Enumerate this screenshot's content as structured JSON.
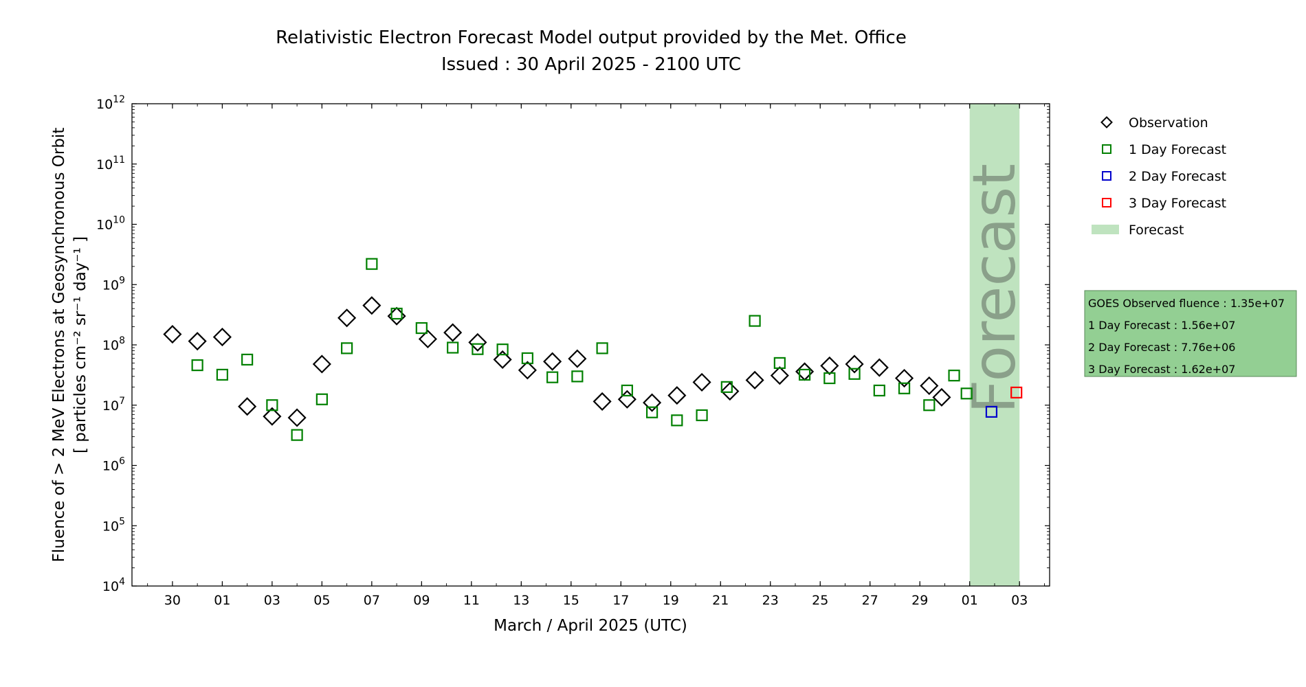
{
  "chart_data": {
    "type": "scatter",
    "title": "Relativistic Electron Forecast Model output provided by the Met. Office",
    "subtitle": "Issued : 30 April 2025 - 2100 UTC",
    "xlabel": "March / April 2025 (UTC)",
    "ylabel_line1": "Fluence of > 2 MeV Electrons at Geosynchronous Orbit",
    "ylabel_line2": "[ particles cm⁻² sr⁻¹ day⁻¹ ]",
    "y_scale": "log",
    "ylim": [
      10000,
      1000000000000
    ],
    "y_ticks": [
      {
        "value": 10000,
        "base": "10",
        "exp": "4"
      },
      {
        "value": 100000,
        "base": "10",
        "exp": "5"
      },
      {
        "value": 1000000,
        "base": "10",
        "exp": "6"
      },
      {
        "value": 10000000,
        "base": "10",
        "exp": "7"
      },
      {
        "value": 100000000,
        "base": "10",
        "exp": "8"
      },
      {
        "value": 1000000000,
        "base": "10",
        "exp": "9"
      },
      {
        "value": 10000000000,
        "base": "10",
        "exp": "10"
      },
      {
        "value": 100000000000,
        "base": "10",
        "exp": "11"
      },
      {
        "value": 1000000000000,
        "base": "10",
        "exp": "12"
      }
    ],
    "xlim": [
      "2025-03-28T09:00",
      "2025-05-04T05:00"
    ],
    "x_ticks": [
      {
        "value": "2025-03-30",
        "label": "30"
      },
      {
        "value": "2025-04-01",
        "label": "01"
      },
      {
        "value": "2025-04-03",
        "label": "03"
      },
      {
        "value": "2025-04-05",
        "label": "05"
      },
      {
        "value": "2025-04-07",
        "label": "07"
      },
      {
        "value": "2025-04-09",
        "label": "09"
      },
      {
        "value": "2025-04-11",
        "label": "11"
      },
      {
        "value": "2025-04-13",
        "label": "13"
      },
      {
        "value": "2025-04-15",
        "label": "15"
      },
      {
        "value": "2025-04-17",
        "label": "17"
      },
      {
        "value": "2025-04-19",
        "label": "19"
      },
      {
        "value": "2025-04-21",
        "label": "21"
      },
      {
        "value": "2025-04-23",
        "label": "23"
      },
      {
        "value": "2025-04-25",
        "label": "25"
      },
      {
        "value": "2025-04-27",
        "label": "27"
      },
      {
        "value": "2025-04-29",
        "label": "29"
      },
      {
        "value": "2025-05-01",
        "label": "01"
      },
      {
        "value": "2025-05-03",
        "label": "03"
      }
    ],
    "forecast_band": {
      "start": "2025-05-01T00:00",
      "end": "2025-05-03T00:00",
      "color": "#bfe3bf",
      "label": "Forecast",
      "label_color": "#8aa08a"
    },
    "series": [
      {
        "name": "Observation",
        "marker": "diamond",
        "color": "#000000",
        "points": [
          {
            "x": "2025-03-30T00:00",
            "y": 150000000
          },
          {
            "x": "2025-03-31T00:00",
            "y": 115000000
          },
          {
            "x": "2025-04-01T00:00",
            "y": 135000000
          },
          {
            "x": "2025-04-02T00:00",
            "y": 9500000
          },
          {
            "x": "2025-04-03T00:00",
            "y": 6500000
          },
          {
            "x": "2025-04-04T00:00",
            "y": 6200000
          },
          {
            "x": "2025-04-05T00:00",
            "y": 48000000
          },
          {
            "x": "2025-04-06T00:00",
            "y": 280000000
          },
          {
            "x": "2025-04-07T00:00",
            "y": 450000000
          },
          {
            "x": "2025-04-08T00:00",
            "y": 300000000
          },
          {
            "x": "2025-04-09T06:00",
            "y": 125000000
          },
          {
            "x": "2025-04-10T06:00",
            "y": 160000000
          },
          {
            "x": "2025-04-11T06:00",
            "y": 110000000
          },
          {
            "x": "2025-04-12T06:00",
            "y": 57000000
          },
          {
            "x": "2025-04-13T06:00",
            "y": 38000000
          },
          {
            "x": "2025-04-14T06:00",
            "y": 53000000
          },
          {
            "x": "2025-04-15T06:00",
            "y": 59000000
          },
          {
            "x": "2025-04-16T06:00",
            "y": 11500000
          },
          {
            "x": "2025-04-17T06:00",
            "y": 12500000
          },
          {
            "x": "2025-04-18T06:00",
            "y": 11000000
          },
          {
            "x": "2025-04-19T06:00",
            "y": 14500000
          },
          {
            "x": "2025-04-20T06:00",
            "y": 24000000
          },
          {
            "x": "2025-04-21T09:00",
            "y": 17000000
          },
          {
            "x": "2025-04-22T09:00",
            "y": 26000000
          },
          {
            "x": "2025-04-23T09:00",
            "y": 31000000
          },
          {
            "x": "2025-04-24T09:00",
            "y": 36000000
          },
          {
            "x": "2025-04-25T09:00",
            "y": 45000000
          },
          {
            "x": "2025-04-26T09:00",
            "y": 48000000
          },
          {
            "x": "2025-04-27T09:00",
            "y": 42000000
          },
          {
            "x": "2025-04-28T09:00",
            "y": 28000000
          },
          {
            "x": "2025-04-29T09:00",
            "y": 21000000
          },
          {
            "x": "2025-04-29T21:00",
            "y": 13500000
          }
        ]
      },
      {
        "name": "1 Day Forecast",
        "marker": "square",
        "color": "#008000",
        "points": [
          {
            "x": "2025-03-31T00:00",
            "y": 46000000
          },
          {
            "x": "2025-04-01T00:00",
            "y": 32000000
          },
          {
            "x": "2025-04-02T00:00",
            "y": 57000000
          },
          {
            "x": "2025-04-03T00:00",
            "y": 10000000
          },
          {
            "x": "2025-04-04T00:00",
            "y": 3200000
          },
          {
            "x": "2025-04-05T00:00",
            "y": 12500000
          },
          {
            "x": "2025-04-06T00:00",
            "y": 88000000
          },
          {
            "x": "2025-04-07T00:00",
            "y": 2200000000
          },
          {
            "x": "2025-04-08T00:00",
            "y": 330000000
          },
          {
            "x": "2025-04-09T00:00",
            "y": 190000000
          },
          {
            "x": "2025-04-10T06:00",
            "y": 90000000
          },
          {
            "x": "2025-04-11T06:00",
            "y": 85000000
          },
          {
            "x": "2025-04-12T06:00",
            "y": 84000000
          },
          {
            "x": "2025-04-13T06:00",
            "y": 60000000
          },
          {
            "x": "2025-04-14T06:00",
            "y": 29000000
          },
          {
            "x": "2025-04-15T06:00",
            "y": 30000000
          },
          {
            "x": "2025-04-16T06:00",
            "y": 88000000
          },
          {
            "x": "2025-04-17T06:00",
            "y": 17500000
          },
          {
            "x": "2025-04-18T06:00",
            "y": 7600000
          },
          {
            "x": "2025-04-19T06:00",
            "y": 5600000
          },
          {
            "x": "2025-04-20T06:00",
            "y": 6800000
          },
          {
            "x": "2025-04-21T06:00",
            "y": 20000000
          },
          {
            "x": "2025-04-22T09:00",
            "y": 250000000
          },
          {
            "x": "2025-04-23T09:00",
            "y": 50000000
          },
          {
            "x": "2025-04-24T09:00",
            "y": 32000000
          },
          {
            "x": "2025-04-25T09:00",
            "y": 28000000
          },
          {
            "x": "2025-04-26T09:00",
            "y": 33000000
          },
          {
            "x": "2025-04-27T09:00",
            "y": 17500000
          },
          {
            "x": "2025-04-28T09:00",
            "y": 19000000
          },
          {
            "x": "2025-04-29T09:00",
            "y": 10000000
          },
          {
            "x": "2025-04-30T09:00",
            "y": 31000000
          },
          {
            "x": "2025-04-30T21:00",
            "y": 15600000
          }
        ]
      },
      {
        "name": "2 Day Forecast",
        "marker": "square",
        "color": "#0000cc",
        "points": [
          {
            "x": "2025-05-01T21:00",
            "y": 7760000
          }
        ]
      },
      {
        "name": "3 Day Forecast",
        "marker": "square",
        "color": "#ff0000",
        "points": [
          {
            "x": "2025-05-02T21:00",
            "y": 16200000
          }
        ]
      }
    ],
    "legend": {
      "placement": "right",
      "entries": [
        {
          "label": "Observation",
          "marker": "diamond",
          "color": "#000000"
        },
        {
          "label": "1 Day Forecast",
          "marker": "square",
          "color": "#008000"
        },
        {
          "label": "2 Day Forecast",
          "marker": "square",
          "color": "#0000cc"
        },
        {
          "label": "3 Day Forecast",
          "marker": "square",
          "color": "#ff0000"
        },
        {
          "label": "Forecast",
          "marker": "band",
          "color": "#bfe3bf"
        }
      ]
    },
    "info_box": {
      "background": "#93cf93",
      "lines": [
        "GOES Observed fluence : 1.35e+07",
        "1 Day Forecast : 1.56e+07",
        "2 Day Forecast : 7.76e+06",
        "3 Day Forecast : 1.62e+07"
      ]
    }
  }
}
